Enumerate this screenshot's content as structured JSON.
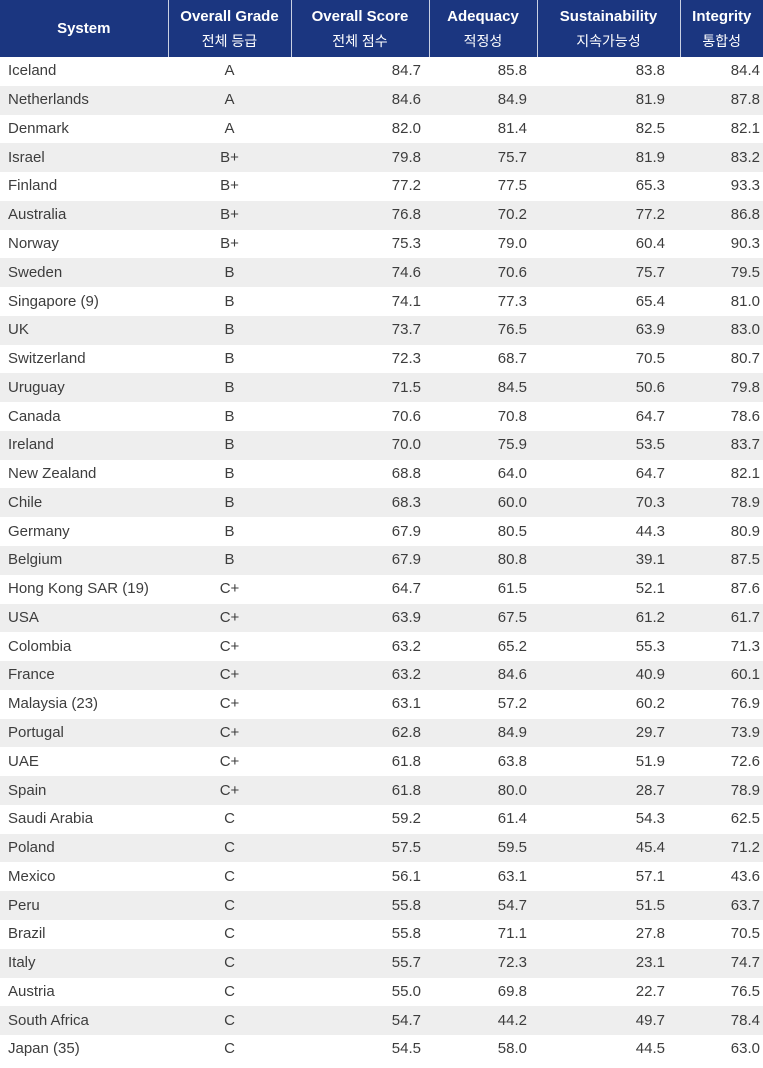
{
  "header": {
    "system": "System",
    "grade": "Overall Grade",
    "grade_ko": "전체 등급",
    "score": "Overall Score",
    "score_ko": "전체 점수",
    "adequacy": "Adequacy",
    "adequacy_ko": "적정성",
    "sustainability": "Sustainability",
    "sustainability_ko": "지속가능성",
    "integrity": "Integrity",
    "integrity_ko": "통합성"
  },
  "colors": {
    "header_bg": "#1b3680",
    "stripe": "#eeeeee"
  },
  "rows": [
    [
      "Iceland",
      "A",
      "84.7",
      "85.8",
      "83.8",
      "84.4"
    ],
    [
      "Netherlands",
      "A",
      "84.6",
      "84.9",
      "81.9",
      "87.8"
    ],
    [
      "Denmark",
      "A",
      "82.0",
      "81.4",
      "82.5",
      "82.1"
    ],
    [
      "Israel",
      "B+",
      "79.8",
      "75.7",
      "81.9",
      "83.2"
    ],
    [
      "Finland",
      "B+",
      "77.2",
      "77.5",
      "65.3",
      "93.3"
    ],
    [
      "Australia",
      "B+",
      "76.8",
      "70.2",
      "77.2",
      "86.8"
    ],
    [
      "Norway",
      "B+",
      "75.3",
      "79.0",
      "60.4",
      "90.3"
    ],
    [
      "Sweden",
      "B",
      "74.6",
      "70.6",
      "75.7",
      "79.5"
    ],
    [
      "Singapore (9)",
      "B",
      "74.1",
      "77.3",
      "65.4",
      "81.0"
    ],
    [
      "UK",
      "B",
      "73.7",
      "76.5",
      "63.9",
      "83.0"
    ],
    [
      "Switzerland",
      "B",
      "72.3",
      "68.7",
      "70.5",
      "80.7"
    ],
    [
      "Uruguay",
      "B",
      "71.5",
      "84.5",
      "50.6",
      "79.8"
    ],
    [
      "Canada",
      "B",
      "70.6",
      "70.8",
      "64.7",
      "78.6"
    ],
    [
      "Ireland",
      "B",
      "70.0",
      "75.9",
      "53.5",
      "83.7"
    ],
    [
      "New Zealand",
      "B",
      "68.8",
      "64.0",
      "64.7",
      "82.1"
    ],
    [
      "Chile",
      "B",
      "68.3",
      "60.0",
      "70.3",
      "78.9"
    ],
    [
      "Germany",
      "B",
      "67.9",
      "80.5",
      "44.3",
      "80.9"
    ],
    [
      "Belgium",
      "B",
      "67.9",
      "80.8",
      "39.1",
      "87.5"
    ],
    [
      "Hong Kong SAR (19)",
      "C+",
      "64.7",
      "61.5",
      "52.1",
      "87.6"
    ],
    [
      "USA",
      "C+",
      "63.9",
      "67.5",
      "61.2",
      "61.7"
    ],
    [
      "Colombia",
      "C+",
      "63.2",
      "65.2",
      "55.3",
      "71.3"
    ],
    [
      "France",
      "C+",
      "63.2",
      "84.6",
      "40.9",
      "60.1"
    ],
    [
      "Malaysia (23)",
      "C+",
      "63.1",
      "57.2",
      "60.2",
      "76.9"
    ],
    [
      "Portugal",
      "C+",
      "62.8",
      "84.9",
      "29.7",
      "73.9"
    ],
    [
      "UAE",
      "C+",
      "61.8",
      "63.8",
      "51.9",
      "72.6"
    ],
    [
      "Spain",
      "C+",
      "61.8",
      "80.0",
      "28.7",
      "78.9"
    ],
    [
      "Saudi Arabia",
      "C",
      "59.2",
      "61.4",
      "54.3",
      "62.5"
    ],
    [
      "Poland",
      "C",
      "57.5",
      "59.5",
      "45.4",
      "71.2"
    ],
    [
      "Mexico",
      "C",
      "56.1",
      "63.1",
      "57.1",
      "43.6"
    ],
    [
      "Peru",
      "C",
      "55.8",
      "54.7",
      "51.5",
      "63.7"
    ],
    [
      "Brazil",
      "C",
      "55.8",
      "71.1",
      "27.8",
      "70.5"
    ],
    [
      "Italy",
      "C",
      "55.7",
      "72.3",
      "23.1",
      "74.7"
    ],
    [
      "Austria",
      "C",
      "55.0",
      "69.8",
      "22.7",
      "76.5"
    ],
    [
      "South Africa",
      "C",
      "54.7",
      "44.2",
      "49.7",
      "78.4"
    ],
    [
      "Japan (35)",
      "C",
      "54.5",
      "58.0",
      "44.5",
      "63.0"
    ]
  ]
}
